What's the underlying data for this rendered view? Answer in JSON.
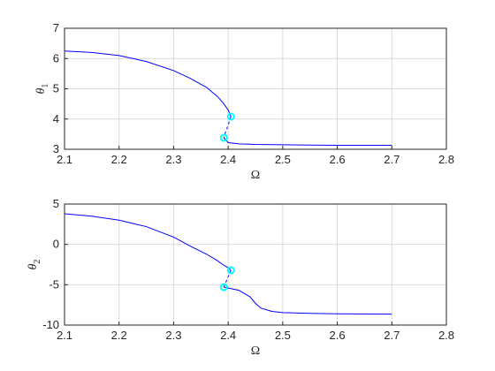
{
  "chart_data": [
    {
      "type": "line",
      "xlabel": "Ω",
      "ylabel": "θ",
      "ylabel_sub": "1",
      "xlim": [
        2.1,
        2.8
      ],
      "ylim": [
        3,
        7
      ],
      "xticks": [
        "2.1",
        "2.2",
        "2.3",
        "2.4",
        "2.5",
        "2.6",
        "2.7",
        "2.8"
      ],
      "yticks": [
        "3",
        "4",
        "5",
        "6",
        "7"
      ],
      "grid": true,
      "line_color": "#0000ff",
      "marker_color": "#00ffff",
      "series": [
        {
          "style": "solid",
          "x": [
            2.1,
            2.15,
            2.2,
            2.25,
            2.3,
            2.33,
            2.36,
            2.38,
            2.39,
            2.4,
            2.405
          ],
          "y": [
            6.25,
            6.2,
            6.1,
            5.9,
            5.6,
            5.35,
            5.05,
            4.75,
            4.55,
            4.3,
            4.08
          ]
        },
        {
          "style": "dashed",
          "x": [
            2.405,
            2.4,
            2.395,
            2.392
          ],
          "y": [
            4.08,
            3.8,
            3.55,
            3.38
          ]
        },
        {
          "style": "solid",
          "x": [
            2.392,
            2.4,
            2.42,
            2.45,
            2.5,
            2.55,
            2.6,
            2.7
          ],
          "y": [
            3.38,
            3.22,
            3.18,
            3.16,
            3.15,
            3.14,
            3.13,
            3.13
          ]
        }
      ],
      "markers": [
        {
          "x": 2.405,
          "y": 4.08
        },
        {
          "x": 2.392,
          "y": 3.38
        }
      ]
    },
    {
      "type": "line",
      "xlabel": "Ω",
      "ylabel": "θ",
      "ylabel_sub": "2",
      "xlim": [
        2.1,
        2.8
      ],
      "ylim": [
        -10,
        5
      ],
      "xticks": [
        "2.1",
        "2.2",
        "2.3",
        "2.4",
        "2.5",
        "2.6",
        "2.7",
        "2.8"
      ],
      "yticks": [
        "-10",
        "-5",
        "0",
        "5"
      ],
      "grid": true,
      "line_color": "#0000ff",
      "marker_color": "#00ffff",
      "series": [
        {
          "style": "solid",
          "x": [
            2.1,
            2.15,
            2.2,
            2.25,
            2.3,
            2.33,
            2.36,
            2.38,
            2.39,
            2.4,
            2.405
          ],
          "y": [
            3.8,
            3.5,
            3.0,
            2.2,
            0.9,
            -0.2,
            -1.2,
            -2.0,
            -2.5,
            -2.9,
            -3.2
          ]
        },
        {
          "style": "dashed",
          "x": [
            2.405,
            2.4,
            2.395,
            2.392
          ],
          "y": [
            -3.2,
            -4.0,
            -4.8,
            -5.3
          ]
        },
        {
          "style": "solid",
          "x": [
            2.392,
            2.4,
            2.42,
            2.44,
            2.45,
            2.46,
            2.48,
            2.5,
            2.55,
            2.6,
            2.7
          ],
          "y": [
            -5.3,
            -5.4,
            -5.7,
            -6.5,
            -7.3,
            -7.9,
            -8.3,
            -8.45,
            -8.55,
            -8.6,
            -8.65
          ]
        }
      ],
      "markers": [
        {
          "x": 2.405,
          "y": -3.2
        },
        {
          "x": 2.392,
          "y": -5.3
        }
      ]
    }
  ]
}
